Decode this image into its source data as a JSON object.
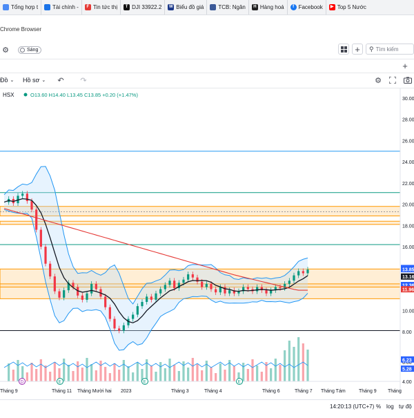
{
  "bookmarks": [
    {
      "label": "Tổng hợp t",
      "color": "#4c8bf5",
      "glyph": ""
    },
    {
      "label": "Tài chính -",
      "color": "#1a73e8",
      "glyph": ""
    },
    {
      "label": "Tin tức thị",
      "color": "#e53935",
      "glyph": "F"
    },
    {
      "label": "DJI 33922.2",
      "color": "#111111",
      "glyph": "T"
    },
    {
      "label": "Biểu đồ giá",
      "color": "#1e3a8a",
      "glyph": "W"
    },
    {
      "label": "TCB: Ngân",
      "color": "#3b5998",
      "glyph": ""
    },
    {
      "label": "Hàng hoá",
      "color": "#222222",
      "glyph": "H"
    },
    {
      "label": "Facebook",
      "color": "#1877f2",
      "glyph": "f"
    },
    {
      "label": "Top 5 Nước",
      "color": "#ff0000",
      "glyph": "▶"
    }
  ],
  "window_title": "Chrome Browser",
  "toolbar1": {
    "theme_label": "Sáng",
    "search_placeholder": "Tìm kiếm"
  },
  "toolbar2": {
    "plus": "+"
  },
  "toolbar3": {
    "timeframe_label": "Đồ",
    "profile_label": "Hồ sơ"
  },
  "legend": {
    "symbol": "HSX",
    "ohlc": "O13.60 H14.40 L13.45 C13.85 +0.20 (+1.47%)"
  },
  "price_axis": {
    "ticks": [
      "30.00",
      "28.00",
      "26.00",
      "24.00",
      "22.00",
      "20.00",
      "18.00",
      "16.00",
      "14.00",
      "12.00",
      "10.00",
      "8.00",
      "6.00",
      "4.00"
    ],
    "tags": [
      {
        "value": "13.96",
        "color": "#2962ff"
      },
      {
        "value": "13.85",
        "color": "#2962ff"
      },
      {
        "value": "13.16",
        "color": "#131722"
      },
      {
        "value": "12.36",
        "color": "#2962ff"
      },
      {
        "value": "11.96",
        "color": "#e53935"
      },
      {
        "value": "6.23",
        "color": "#2962ff"
      },
      {
        "value": "5.28",
        "color": "#2962ff"
      }
    ]
  },
  "time_axis": {
    "labels": [
      "Tháng 9",
      "Tháng 11",
      "Tháng Mười hai",
      "2023",
      "Tháng 3",
      "Tháng 4",
      "Tháng 6",
      "Tháng 7",
      "Tháng Tám",
      "Tháng 9",
      "Tháng"
    ]
  },
  "markers": [
    "D",
    "E",
    "E",
    "E"
  ],
  "status_bar": {
    "time": "14:20:13 (UTC+7)",
    "percent": "%",
    "log": "log",
    "auto": "tự độ"
  },
  "chart_data": {
    "type": "line",
    "ylim": [
      4,
      30
    ],
    "close": [
      20.2,
      20.5,
      20.1,
      20.8,
      21.0,
      20.3,
      19.5,
      17.6,
      16.0,
      14.4,
      13.2,
      11.8,
      11.2,
      11.9,
      12.6,
      12.2,
      11.4,
      11.0,
      11.6,
      12.5,
      12.0,
      11.3,
      10.3,
      9.2,
      8.3,
      8.1,
      8.6,
      9.2,
      9.6,
      10.4,
      10.8,
      11.3,
      11.0,
      11.6,
      12.0,
      12.4,
      12.8,
      12.1,
      12.6,
      12.9,
      13.4,
      13.1,
      12.7,
      12.2,
      12.5,
      12.0,
      11.7,
      12.2,
      11.6,
      11.9,
      11.6,
      11.8,
      12.2,
      12.0,
      11.8,
      12.2,
      11.9,
      11.6,
      11.9,
      12.2,
      12.1,
      12.5,
      12.8,
      13.3,
      13.7,
      13.5,
      13.85
    ],
    "levels": [
      {
        "y": 25.0,
        "color": "#2196f3"
      },
      {
        "y": 21.1,
        "color": "#089981"
      },
      {
        "y": 16.2,
        "color": "#089981"
      },
      {
        "y": 8.1,
        "color": "#131722"
      }
    ],
    "zones": [
      {
        "from": 18.9,
        "to": 19.8
      },
      {
        "from": 18.1,
        "to": 18.4
      },
      {
        "from": 11.1,
        "to": 13.9
      },
      {
        "from": 12.2,
        "to": 12.5
      }
    ]
  }
}
